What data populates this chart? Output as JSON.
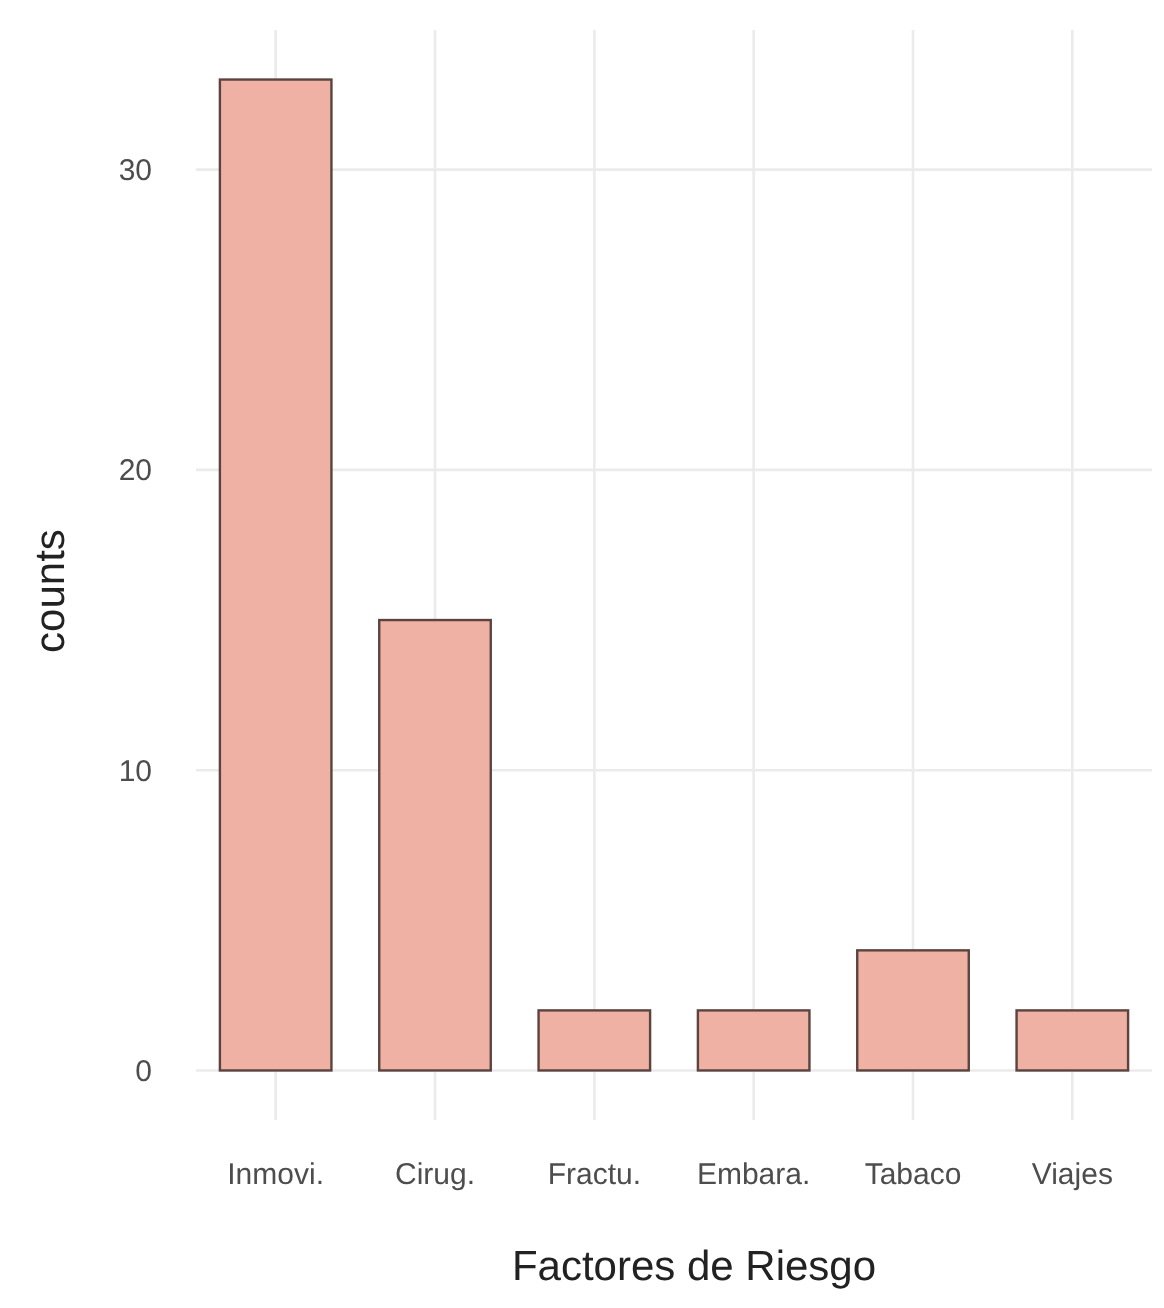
{
  "chart_data": {
    "type": "bar",
    "xlabel": "Factores de Riesgo",
    "ylabel": "counts",
    "categories": [
      "Inmovi.",
      "Cirug.",
      "Fractu.",
      "Embara.",
      "Tabaco",
      "Viajes"
    ],
    "values": [
      33,
      15,
      2,
      2,
      4,
      2
    ],
    "color": "#efb1a4",
    "ylim": [
      -1.65,
      34.65
    ],
    "yticks": [
      0,
      10,
      20,
      30
    ],
    "grid": true
  }
}
